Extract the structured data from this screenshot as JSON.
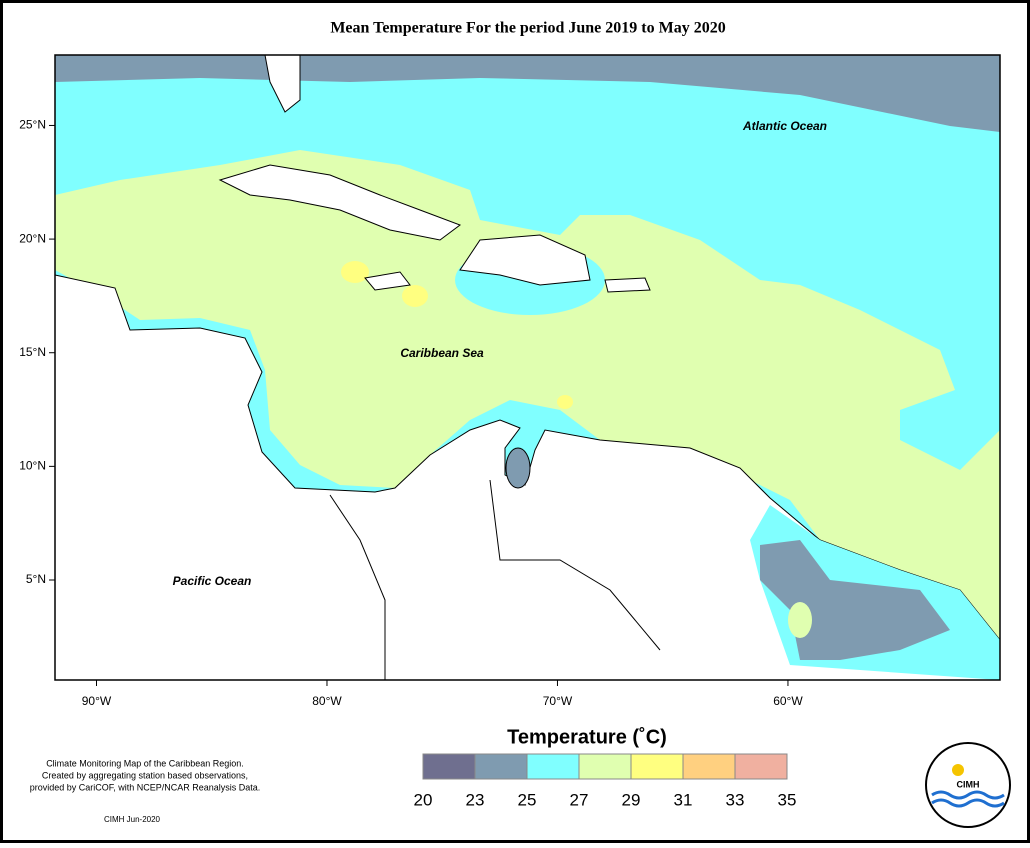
{
  "title": "Mean Temperature For the period June 2019 to May 2020",
  "map": {
    "xlim": [
      -91.8,
      -50.8
    ],
    "ylim": [
      0.6,
      28.1
    ],
    "xticks": [
      {
        "value": -90,
        "label": "90°W"
      },
      {
        "value": -80,
        "label": "80°W"
      },
      {
        "value": -70,
        "label": "70°W"
      },
      {
        "value": -60,
        "label": "60°W"
      }
    ],
    "yticks": [
      {
        "value": 5,
        "label": "5°N"
      },
      {
        "value": 10,
        "label": "10°N"
      },
      {
        "value": 15,
        "label": "15°N"
      },
      {
        "value": 20,
        "label": "20°N"
      },
      {
        "value": 25,
        "label": "25°N"
      }
    ],
    "labels": [
      "Atlantic Ocean",
      "Caribbean Sea",
      "Pacific Ocean"
    ]
  },
  "legend": {
    "title": "Temperature (˚C)",
    "ticks": [
      20,
      23,
      25,
      27,
      29,
      31,
      33,
      35
    ],
    "colors": [
      "#6f6f8f",
      "#7f9bb0",
      "#80ffff",
      "#e0ffb0",
      "#ffff80",
      "#ffd080",
      "#f0b0a0"
    ]
  },
  "credits": [
    "Climate Monitoring Map of the Caribbean Region.",
    "Created by aggregating station based observations,",
    "provided by CariCOF, with NCEP/NCAR Reanalysis Data."
  ],
  "footer": "CIMH Jun-2020",
  "logo": "CIMH"
}
